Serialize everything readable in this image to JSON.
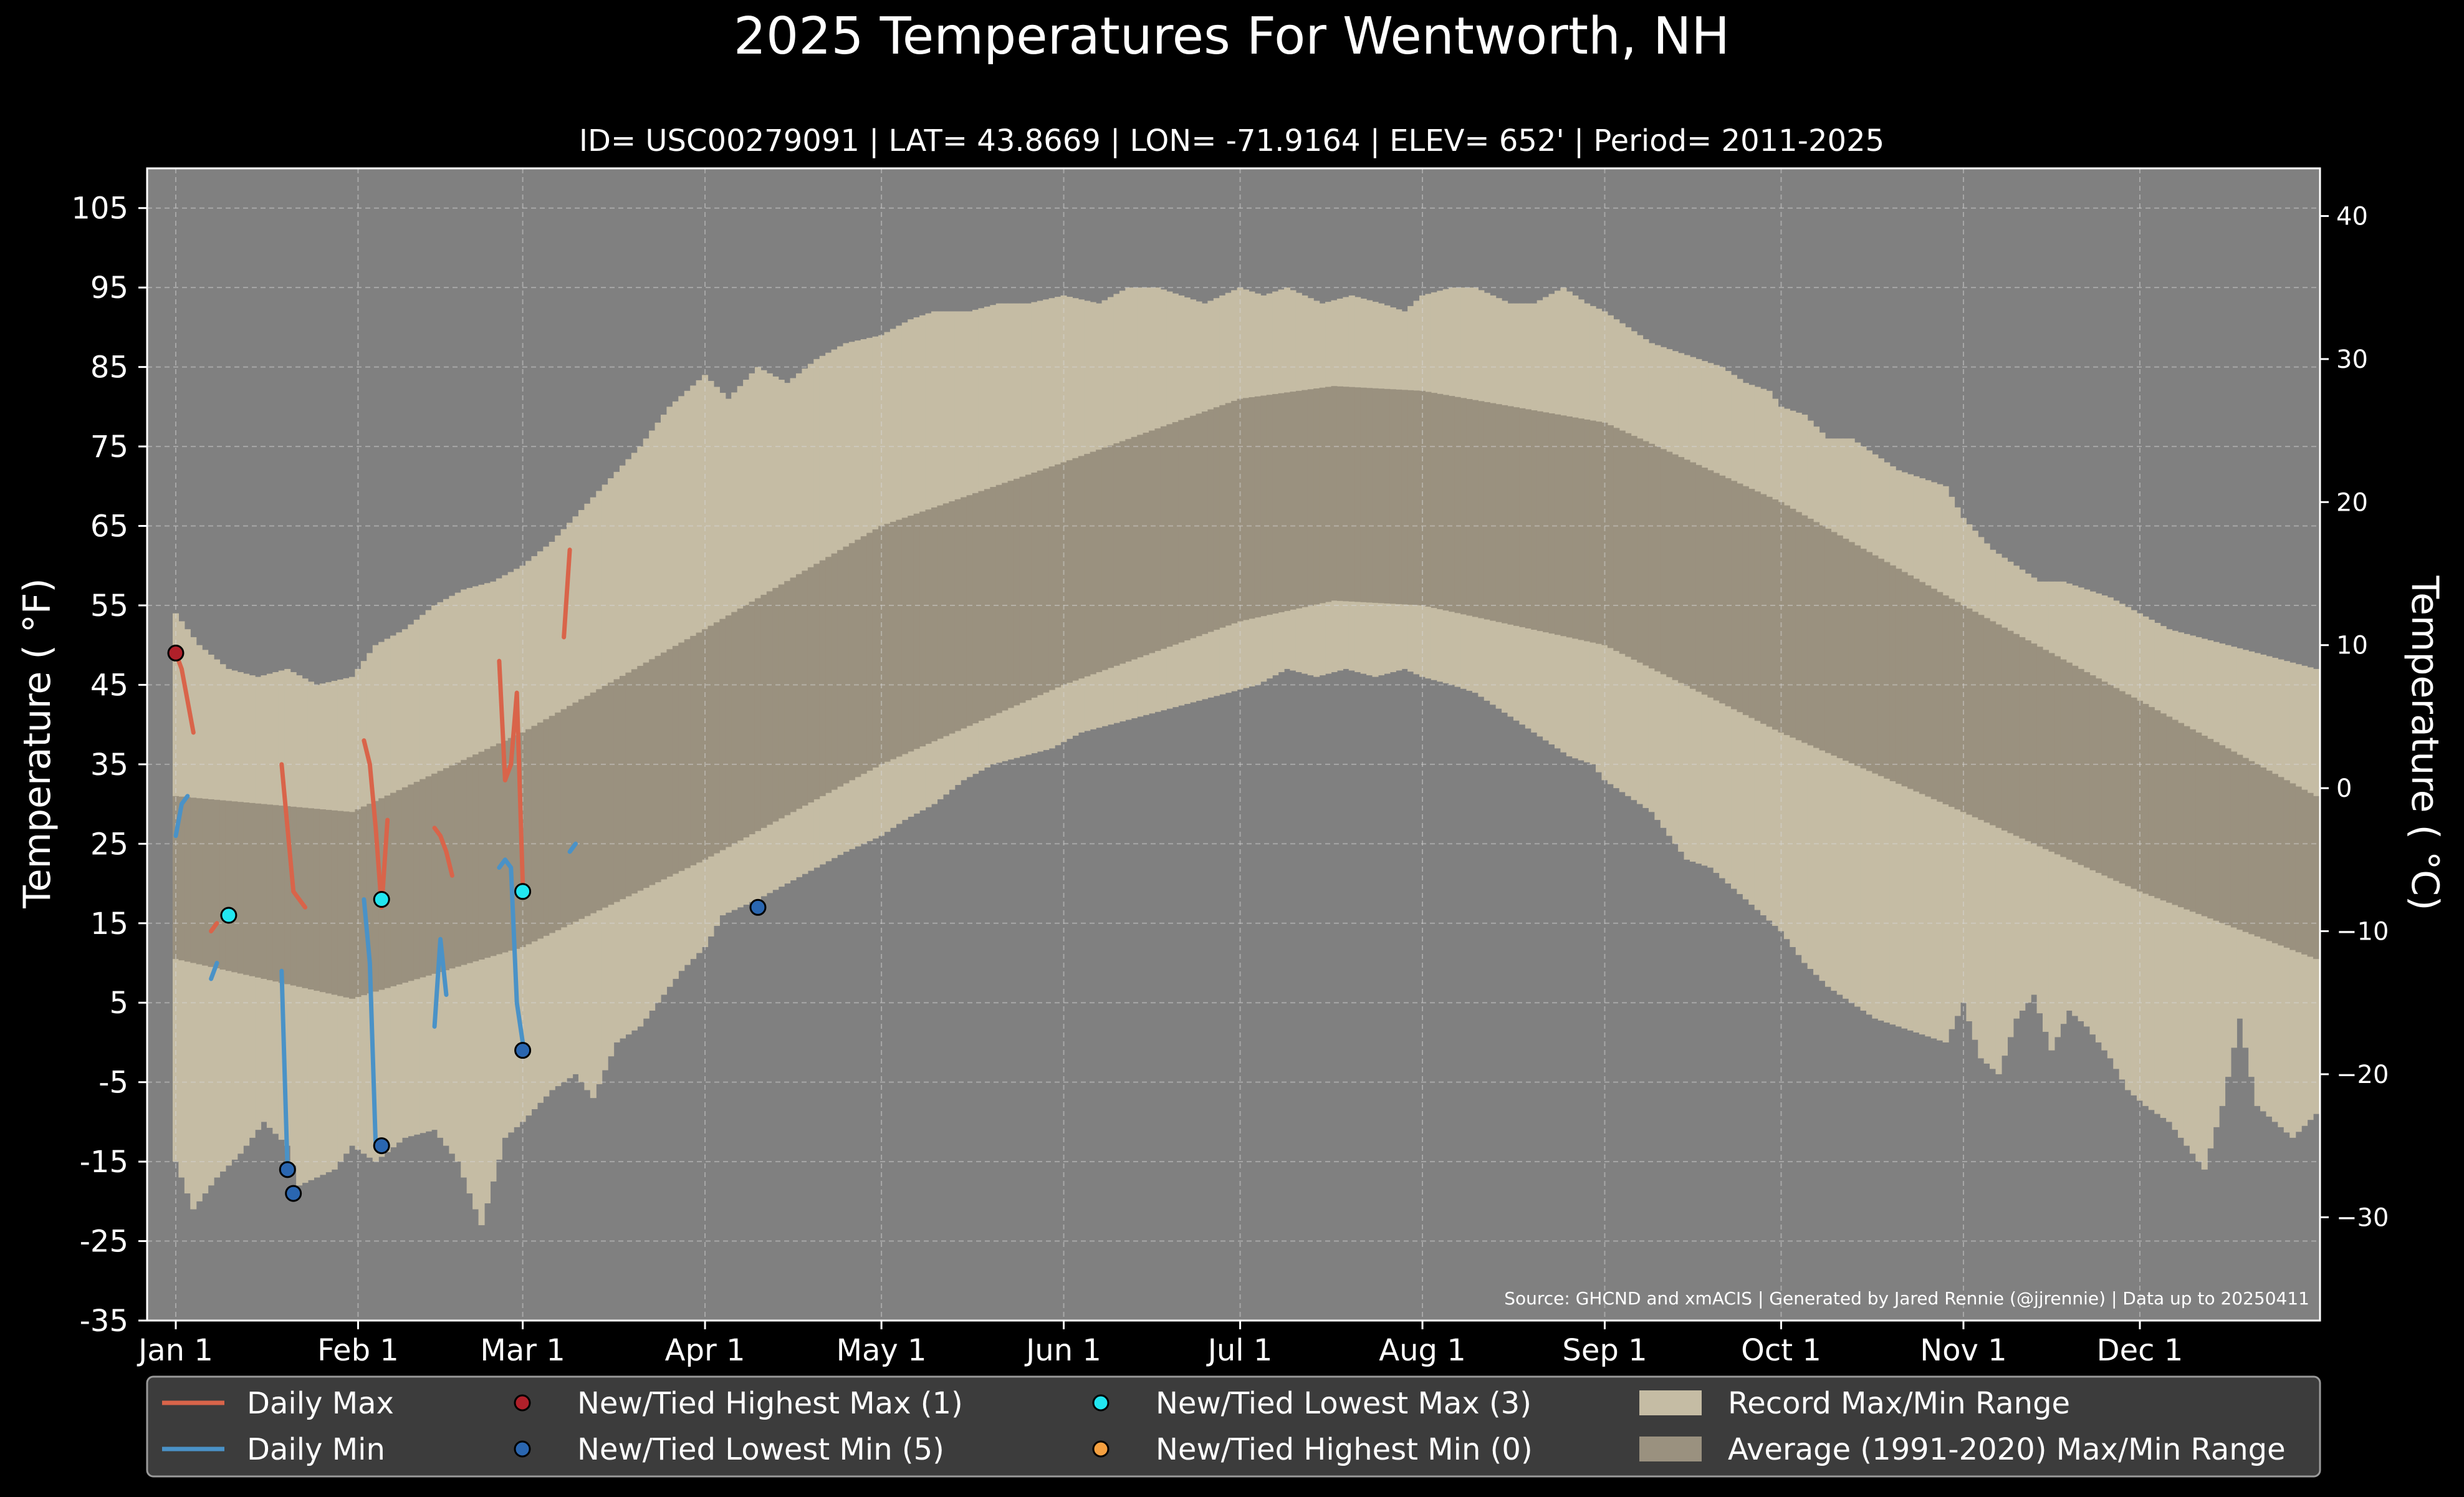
{
  "chart_data": {
    "type": "area",
    "title": "2025 Temperatures For Wentworth, NH",
    "subtitle": "ID= USC00279091 | LAT= 43.8669 | LON= -71.9164 | ELEV= 652' | Period= 2011-2025",
    "ylabel": "Temperature ( °F)",
    "ylabel_right": "Temperature ( °C)",
    "source": "Source: GHCND and xmACIS | Generated by Jared Rennie (@jjrennie) | Data up to 20250411",
    "ylim": [
      -35,
      110
    ],
    "y_ticks": [
      105,
      95,
      85,
      75,
      65,
      55,
      45,
      35,
      25,
      15,
      5,
      -5,
      -15,
      -25,
      -35
    ],
    "y_ticks_c": [
      40,
      30,
      20,
      10,
      0,
      -10,
      -20,
      -30
    ],
    "x_ticks": [
      "Jan 1",
      "Feb 1",
      "Mar 1",
      "Apr 1",
      "May 1",
      "Jun 1",
      "Jul 1",
      "Aug 1",
      "Sep 1",
      "Oct 1",
      "Nov 1",
      "Dec 1"
    ],
    "x_tick_days": [
      1,
      32,
      60,
      91,
      121,
      152,
      182,
      213,
      244,
      274,
      305,
      335
    ],
    "xlim": [
      1,
      365
    ],
    "grid": true,
    "legend_position": "bottom",
    "colors": {
      "background": "#000000",
      "plot_bg": "#808080",
      "record_band": "#c5bca4",
      "normal_band": "#9a917f",
      "daily_max": "#d9644a",
      "daily_min": "#4a92c7",
      "new_high_max": "#b0202a",
      "new_low_min": "#2a66b0",
      "new_low_max": "#22e6f0",
      "new_high_min": "#f5a040",
      "legend_bg": "#3c3c3c"
    },
    "record_max_points": [
      [
        1,
        54
      ],
      [
        5,
        50
      ],
      [
        10,
        47
      ],
      [
        15,
        46
      ],
      [
        20,
        47
      ],
      [
        25,
        45
      ],
      [
        31,
        46
      ],
      [
        35,
        50
      ],
      [
        40,
        52
      ],
      [
        45,
        55
      ],
      [
        50,
        57
      ],
      [
        55,
        58
      ],
      [
        60,
        60
      ],
      [
        65,
        63
      ],
      [
        70,
        67
      ],
      [
        75,
        71
      ],
      [
        80,
        75
      ],
      [
        85,
        80
      ],
      [
        91,
        84
      ],
      [
        95,
        81
      ],
      [
        100,
        85
      ],
      [
        105,
        83
      ],
      [
        110,
        86
      ],
      [
        115,
        88
      ],
      [
        121,
        89
      ],
      [
        126,
        91
      ],
      [
        130,
        92
      ],
      [
        136,
        92
      ],
      [
        141,
        93
      ],
      [
        146,
        93
      ],
      [
        152,
        94
      ],
      [
        158,
        93
      ],
      [
        163,
        95
      ],
      [
        168,
        95
      ],
      [
        172,
        94
      ],
      [
        176,
        93
      ],
      [
        182,
        95
      ],
      [
        186,
        94
      ],
      [
        190,
        95
      ],
      [
        196,
        93
      ],
      [
        201,
        94
      ],
      [
        206,
        93
      ],
      [
        210,
        92
      ],
      [
        213,
        94
      ],
      [
        218,
        95
      ],
      [
        222,
        95
      ],
      [
        228,
        93
      ],
      [
        232,
        93
      ],
      [
        237,
        95
      ],
      [
        241,
        93
      ],
      [
        244,
        92
      ],
      [
        248,
        90
      ],
      [
        252,
        88
      ],
      [
        256,
        87
      ],
      [
        260,
        86
      ],
      [
        264,
        85
      ],
      [
        268,
        83
      ],
      [
        272,
        82
      ],
      [
        274,
        80
      ],
      [
        278,
        79
      ],
      [
        282,
        76
      ],
      [
        286,
        76
      ],
      [
        290,
        74
      ],
      [
        294,
        72
      ],
      [
        298,
        71
      ],
      [
        302,
        70
      ],
      [
        305,
        66
      ],
      [
        310,
        62
      ],
      [
        314,
        60
      ],
      [
        318,
        58
      ],
      [
        322,
        58
      ],
      [
        326,
        57
      ],
      [
        330,
        56
      ],
      [
        335,
        54
      ],
      [
        340,
        52
      ],
      [
        345,
        51
      ],
      [
        350,
        50
      ],
      [
        355,
        49
      ],
      [
        360,
        48
      ],
      [
        365,
        47
      ]
    ],
    "record_min_points": [
      [
        1,
        -15
      ],
      [
        4,
        -21
      ],
      [
        8,
        -17
      ],
      [
        12,
        -14
      ],
      [
        16,
        -10
      ],
      [
        20,
        -13
      ],
      [
        22,
        -18
      ],
      [
        25,
        -17
      ],
      [
        28,
        -16
      ],
      [
        31,
        -13
      ],
      [
        35,
        -15
      ],
      [
        40,
        -12
      ],
      [
        45,
        -11
      ],
      [
        49,
        -15
      ],
      [
        53,
        -23
      ],
      [
        57,
        -12
      ],
      [
        60,
        -10
      ],
      [
        65,
        -6
      ],
      [
        69,
        -4
      ],
      [
        72,
        -7
      ],
      [
        76,
        0
      ],
      [
        80,
        2
      ],
      [
        83,
        5
      ],
      [
        87,
        9
      ],
      [
        91,
        12
      ],
      [
        94,
        16
      ],
      [
        97,
        17
      ],
      [
        100,
        18
      ],
      [
        105,
        20
      ],
      [
        110,
        22
      ],
      [
        115,
        24
      ],
      [
        121,
        26
      ],
      [
        125,
        28
      ],
      [
        130,
        30
      ],
      [
        135,
        33
      ],
      [
        140,
        35
      ],
      [
        145,
        36
      ],
      [
        150,
        37
      ],
      [
        155,
        39
      ],
      [
        160,
        40
      ],
      [
        165,
        41
      ],
      [
        170,
        42
      ],
      [
        175,
        43
      ],
      [
        180,
        44
      ],
      [
        185,
        45
      ],
      [
        190,
        47
      ],
      [
        195,
        46
      ],
      [
        200,
        47
      ],
      [
        205,
        46
      ],
      [
        210,
        47
      ],
      [
        213,
        46
      ],
      [
        218,
        45
      ],
      [
        222,
        44
      ],
      [
        226,
        42
      ],
      [
        230,
        40
      ],
      [
        234,
        38
      ],
      [
        238,
        36
      ],
      [
        242,
        35
      ],
      [
        244,
        33
      ],
      [
        248,
        31
      ],
      [
        252,
        29
      ],
      [
        255,
        26
      ],
      [
        258,
        23
      ],
      [
        262,
        22
      ],
      [
        265,
        20
      ],
      [
        268,
        18
      ],
      [
        271,
        16
      ],
      [
        274,
        14
      ],
      [
        278,
        10
      ],
      [
        282,
        7
      ],
      [
        286,
        5
      ],
      [
        290,
        3
      ],
      [
        294,
        2
      ],
      [
        298,
        1
      ],
      [
        302,
        0
      ],
      [
        305,
        5
      ],
      [
        308,
        -2
      ],
      [
        311,
        -4
      ],
      [
        314,
        3
      ],
      [
        317,
        6
      ],
      [
        320,
        -1
      ],
      [
        323,
        4
      ],
      [
        326,
        2
      ],
      [
        330,
        -2
      ],
      [
        333,
        -6
      ],
      [
        336,
        -8
      ],
      [
        340,
        -10
      ],
      [
        343,
        -13
      ],
      [
        346,
        -16
      ],
      [
        349,
        -8
      ],
      [
        352,
        3
      ],
      [
        355,
        -8
      ],
      [
        358,
        -10
      ],
      [
        361,
        -12
      ],
      [
        365,
        -9
      ]
    ],
    "normal_max_points": [
      [
        1,
        31
      ],
      [
        31,
        29
      ],
      [
        60,
        39
      ],
      [
        91,
        52
      ],
      [
        121,
        65
      ],
      [
        152,
        73
      ],
      [
        182,
        81
      ],
      [
        198,
        82.6
      ],
      [
        213,
        82
      ],
      [
        244,
        78
      ],
      [
        274,
        68
      ],
      [
        305,
        55
      ],
      [
        335,
        43
      ],
      [
        365,
        31
      ]
    ],
    "normal_min_points": [
      [
        1,
        10.5
      ],
      [
        31,
        5.5
      ],
      [
        60,
        12
      ],
      [
        91,
        23
      ],
      [
        121,
        35
      ],
      [
        152,
        45
      ],
      [
        182,
        53
      ],
      [
        198,
        55.6
      ],
      [
        213,
        55
      ],
      [
        244,
        50
      ],
      [
        274,
        39
      ],
      [
        305,
        29
      ],
      [
        335,
        19
      ],
      [
        365,
        10.5
      ]
    ],
    "daily_max_segments": [
      [
        [
          1,
          49
        ],
        [
          2,
          47
        ],
        [
          3,
          43
        ],
        [
          4,
          39
        ]
      ],
      [
        [
          7,
          14
        ],
        [
          8,
          15
        ]
      ],
      [
        [
          19,
          35
        ],
        [
          20,
          27
        ],
        [
          21,
          19
        ],
        [
          22,
          18
        ],
        [
          23,
          17
        ]
      ],
      [
        [
          33,
          38
        ],
        [
          34,
          35
        ],
        [
          35,
          27
        ],
        [
          36,
          17
        ],
        [
          37,
          28
        ]
      ],
      [
        [
          45,
          27
        ],
        [
          46,
          26
        ],
        [
          47,
          24
        ],
        [
          48,
          21
        ]
      ],
      [
        [
          56,
          48
        ],
        [
          57,
          33
        ],
        [
          58,
          35
        ],
        [
          59,
          44
        ],
        [
          60,
          20
        ]
      ],
      [
        [
          67,
          51
        ],
        [
          68,
          62
        ]
      ]
    ],
    "daily_min_segments": [
      [
        [
          1,
          26
        ],
        [
          2,
          30
        ],
        [
          3,
          31
        ]
      ],
      [
        [
          7,
          8
        ],
        [
          8,
          10
        ]
      ],
      [
        [
          19,
          9
        ],
        [
          20,
          -16
        ]
      ],
      [
        [
          33,
          18
        ],
        [
          34,
          10
        ],
        [
          35,
          -13
        ]
      ],
      [
        [
          45,
          2
        ],
        [
          46,
          13
        ],
        [
          47,
          6
        ]
      ],
      [
        [
          56,
          22
        ],
        [
          57,
          23
        ],
        [
          58,
          22
        ],
        [
          59,
          5
        ],
        [
          60,
          0
        ]
      ],
      [
        [
          68,
          24
        ],
        [
          69,
          25
        ]
      ]
    ],
    "new_tied_highest_max": [
      [
        1,
        49
      ]
    ],
    "new_tied_lowest_min": [
      [
        20,
        -16
      ],
      [
        21,
        -19
      ],
      [
        36,
        -13
      ],
      [
        60,
        -1
      ],
      [
        100,
        17
      ]
    ],
    "new_tied_lowest_max": [
      [
        10,
        16
      ],
      [
        36,
        18
      ],
      [
        60,
        19
      ]
    ],
    "new_tied_highest_min": [],
    "legend": [
      {
        "label": "Daily Max",
        "kind": "line",
        "color_key": "daily_max"
      },
      {
        "label": "Daily Min",
        "kind": "line",
        "color_key": "daily_min"
      },
      {
        "label": "New/Tied Highest Max (1)",
        "kind": "dot",
        "color_key": "new_high_max"
      },
      {
        "label": "New/Tied Lowest Min (5)",
        "kind": "dot",
        "color_key": "new_low_min"
      },
      {
        "label": "New/Tied Lowest Max (3)",
        "kind": "dot",
        "color_key": "new_low_max"
      },
      {
        "label": "New/Tied Highest Min (0)",
        "kind": "dot",
        "color_key": "new_high_min"
      },
      {
        "label": "Record Max/Min Range",
        "kind": "patch",
        "color_key": "record_band"
      },
      {
        "label": "Average (1991-2020) Max/Min Range",
        "kind": "patch",
        "color_key": "normal_band"
      }
    ]
  }
}
